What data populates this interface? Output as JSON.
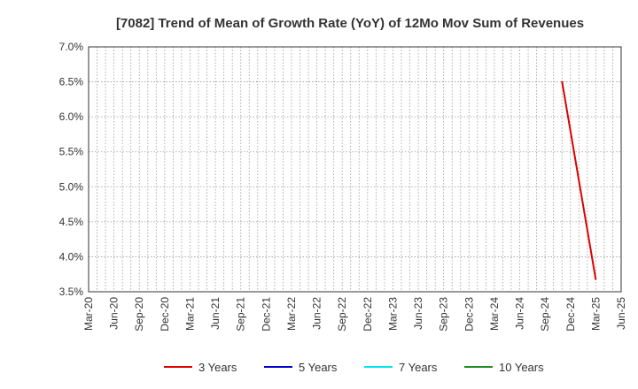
{
  "chart_data": {
    "type": "line",
    "title": "[7082]  Trend of Mean of Growth Rate (YoY) of 12Mo Mov Sum of Revenues",
    "xlabel": "",
    "ylabel": "",
    "x_ticks": [
      "Mar-20",
      "Jun-20",
      "Sep-20",
      "Dec-20",
      "Mar-21",
      "Jun-21",
      "Sep-21",
      "Dec-21",
      "Mar-22",
      "Jun-22",
      "Sep-22",
      "Dec-22",
      "Mar-23",
      "Jun-23",
      "Sep-23",
      "Dec-23",
      "Mar-24",
      "Jun-24",
      "Sep-24",
      "Dec-24",
      "Mar-25",
      "Jun-25"
    ],
    "xlim": [
      "2020-03",
      "2025-06"
    ],
    "y_ticks": [
      "7.0%",
      "6.5%",
      "6.0%",
      "5.5%",
      "5.0%",
      "4.5%",
      "4.0%",
      "3.5%"
    ],
    "ylim": [
      3.5,
      7.0
    ],
    "grid": true,
    "legend_position": "bottom",
    "series": [
      {
        "name": "3 Years",
        "color": "#dd0000",
        "points": [
          [
            "2024-11",
            6.51
          ],
          [
            "2025-03",
            3.67
          ]
        ]
      },
      {
        "name": "5 Years",
        "color": "#0000cc",
        "points": []
      },
      {
        "name": "7 Years",
        "color": "#00e5ee",
        "points": []
      },
      {
        "name": "10 Years",
        "color": "#228b22",
        "points": []
      }
    ]
  }
}
